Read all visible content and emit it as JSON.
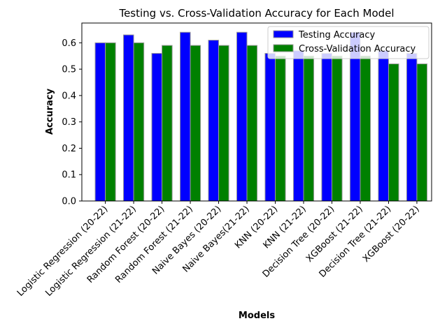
{
  "chart_data": {
    "type": "bar",
    "title": "Testing vs. Cross-Validation Accuracy for Each Model",
    "xlabel": "Models",
    "ylabel": "Accuracy",
    "ylim": [
      0,
      0.675
    ],
    "yticks": [
      "0.0",
      "0.1",
      "0.2",
      "0.3",
      "0.4",
      "0.5",
      "0.6"
    ],
    "categories": [
      "Logistic Regression (20-22)",
      "Logistic Regression (21-22)",
      "Random Forest (20-22)",
      "Random Forest (21-22)",
      "Naive Bayes (20-22)",
      "Naive Bayes(21-22)",
      "KNN (20-22)",
      "KNN (21-22)",
      "Decision Tree (20-22)",
      "XGBoost (21-22)",
      "Decision Tree (21-22)",
      "XGBoost (20-22)"
    ],
    "series": [
      {
        "name": "Testing Accuracy",
        "color": "#0000ff",
        "values": [
          0.6,
          0.63,
          0.56,
          0.64,
          0.61,
          0.64,
          0.56,
          0.57,
          0.56,
          0.64,
          0.57,
          0.56
        ]
      },
      {
        "name": "Cross-Validation Accuracy",
        "color": "#008000",
        "values": [
          0.6,
          0.6,
          0.59,
          0.59,
          0.59,
          0.59,
          0.55,
          0.55,
          0.55,
          0.55,
          0.52,
          0.52
        ]
      }
    ],
    "legend": "top-right",
    "grid": false
  }
}
